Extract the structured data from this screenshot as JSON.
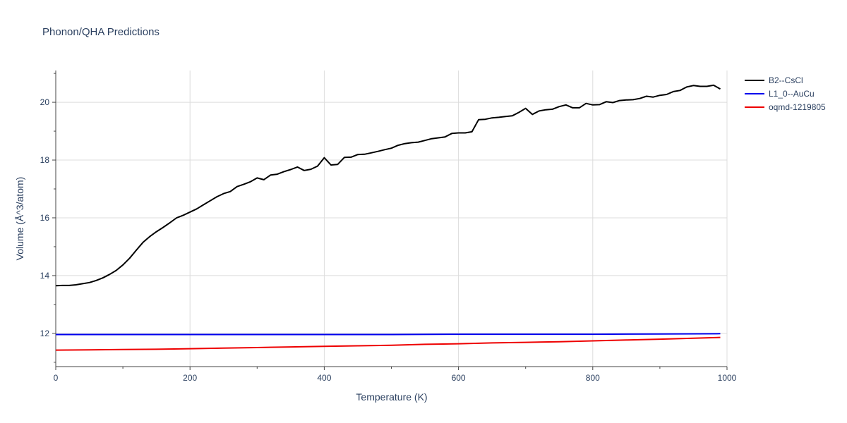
{
  "chart_data": {
    "type": "line",
    "title": "Phonon/QHA Predictions",
    "xlabel": "Temperature (K)",
    "ylabel": "Volume (Å^3/atom)",
    "xlim": [
      0,
      1000
    ],
    "ylim": [
      10.85,
      21.1
    ],
    "xticks": [
      0,
      200,
      400,
      600,
      800,
      1000
    ],
    "yticks": [
      12,
      14,
      16,
      18,
      20
    ],
    "grid": true,
    "legend_position": "top-right",
    "series": [
      {
        "name": "B2--CsCl",
        "color": "#000000",
        "x": [
          0,
          10,
          20,
          30,
          40,
          50,
          60,
          70,
          80,
          90,
          100,
          110,
          120,
          130,
          140,
          150,
          160,
          170,
          180,
          190,
          200,
          210,
          220,
          230,
          240,
          250,
          260,
          270,
          280,
          290,
          300,
          310,
          320,
          330,
          340,
          350,
          360,
          370,
          380,
          390,
          400,
          410,
          420,
          430,
          440,
          450,
          460,
          470,
          480,
          490,
          500,
          510,
          520,
          530,
          540,
          550,
          560,
          570,
          580,
          590,
          600,
          610,
          620,
          630,
          640,
          650,
          660,
          670,
          680,
          690,
          700,
          710,
          720,
          730,
          740,
          750,
          760,
          770,
          780,
          790,
          800,
          810,
          820,
          830,
          840,
          850,
          860,
          870,
          880,
          890,
          900,
          910,
          920,
          930,
          940,
          950,
          960,
          970,
          980,
          990
        ],
        "y": [
          13.65,
          13.66,
          13.66,
          13.68,
          13.72,
          13.76,
          13.83,
          13.92,
          14.04,
          14.18,
          14.37,
          14.6,
          14.88,
          15.15,
          15.35,
          15.52,
          15.67,
          15.83,
          16.0,
          16.09,
          16.2,
          16.31,
          16.45,
          16.59,
          16.73,
          16.84,
          16.91,
          17.08,
          17.16,
          17.25,
          17.38,
          17.32,
          17.48,
          17.51,
          17.6,
          17.67,
          17.76,
          17.64,
          17.68,
          17.79,
          18.08,
          17.83,
          17.85,
          18.09,
          18.1,
          18.19,
          18.2,
          18.25,
          18.3,
          18.36,
          18.41,
          18.51,
          18.57,
          18.6,
          18.62,
          18.68,
          18.74,
          18.77,
          18.8,
          18.92,
          18.94,
          18.94,
          18.98,
          19.4,
          19.41,
          19.46,
          19.48,
          19.51,
          19.53,
          19.65,
          19.79,
          19.58,
          19.7,
          19.74,
          19.76,
          19.85,
          19.91,
          19.81,
          19.81,
          19.96,
          19.91,
          19.92,
          20.02,
          19.99,
          20.06,
          20.08,
          20.09,
          20.13,
          20.21,
          20.18,
          20.24,
          20.27,
          20.37,
          20.41,
          20.53,
          20.58,
          20.55,
          20.55,
          20.59,
          20.46
        ]
      },
      {
        "name": "L1_0--AuCu",
        "color": "#0000ee",
        "x": [
          0,
          100,
          200,
          300,
          400,
          500,
          600,
          700,
          800,
          900,
          990
        ],
        "y": [
          11.96,
          11.96,
          11.96,
          11.96,
          11.96,
          11.96,
          11.97,
          11.97,
          11.97,
          11.98,
          11.99
        ]
      },
      {
        "name": "oqmd-1219805",
        "color": "#ee0000",
        "x": [
          0,
          50,
          100,
          150,
          200,
          250,
          300,
          350,
          400,
          450,
          500,
          550,
          600,
          650,
          700,
          750,
          800,
          850,
          900,
          950,
          990
        ],
        "y": [
          11.42,
          11.43,
          11.44,
          11.45,
          11.47,
          11.49,
          11.51,
          11.53,
          11.55,
          11.57,
          11.59,
          11.62,
          11.64,
          11.67,
          11.69,
          11.71,
          11.74,
          11.77,
          11.8,
          11.83,
          11.86
        ]
      }
    ]
  }
}
